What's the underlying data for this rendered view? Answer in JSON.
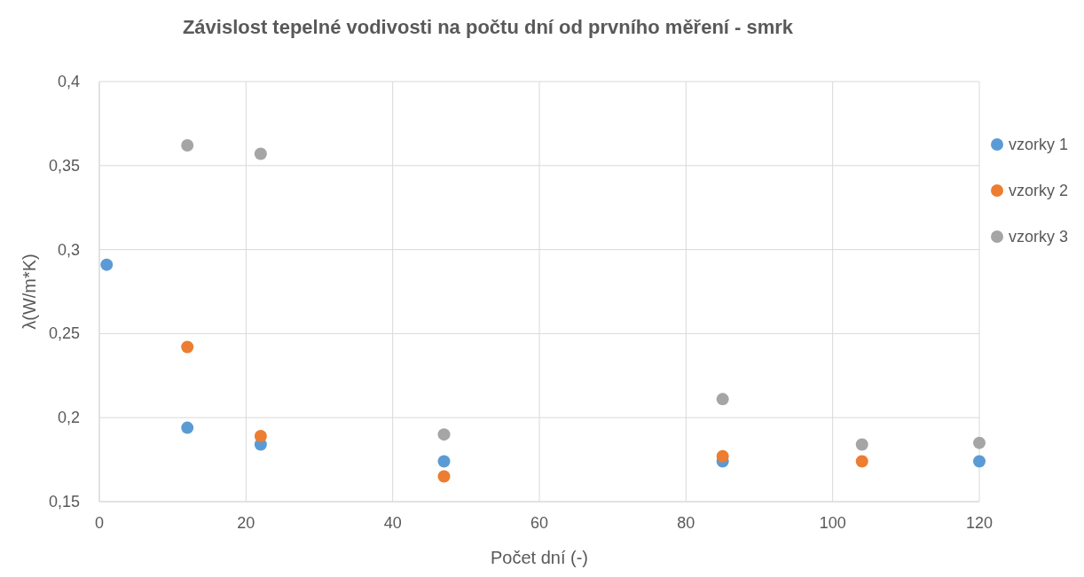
{
  "chart_data": {
    "type": "scatter",
    "title": "Závislost tepelné vodivosti na počtu dní od prvního měření - smrk",
    "xlabel": "Počet dní (-)",
    "ylabel": "λ(W/m*K)",
    "xlim": [
      0,
      120
    ],
    "xticks": [
      0,
      20,
      40,
      60,
      80,
      100,
      120
    ],
    "ylim": [
      0.15,
      0.4
    ],
    "yticks": [
      {
        "value": 0.15,
        "label": "0,15"
      },
      {
        "value": 0.2,
        "label": "0,2"
      },
      {
        "value": 0.25,
        "label": "0,25"
      },
      {
        "value": 0.3,
        "label": "0,3"
      },
      {
        "value": 0.35,
        "label": "0,35"
      },
      {
        "value": 0.4,
        "label": "0,4"
      }
    ],
    "grid": true,
    "legend": "right",
    "marker": "circle",
    "series": [
      {
        "name": "vzorky 1",
        "color": "#5b9bd5",
        "x": [
          1,
          12,
          22,
          47,
          85,
          120
        ],
        "values": [
          0.291,
          0.194,
          0.184,
          0.174,
          0.174,
          0.174
        ]
      },
      {
        "name": "vzorky 2",
        "color": "#ed7d31",
        "x": [
          12,
          22,
          47,
          85,
          104
        ],
        "values": [
          0.242,
          0.189,
          0.165,
          0.177,
          0.174
        ]
      },
      {
        "name": "vzorky 3",
        "color": "#a5a5a5",
        "x": [
          12,
          22,
          47,
          85,
          104,
          120
        ],
        "values": [
          0.362,
          0.357,
          0.19,
          0.211,
          0.184,
          0.185
        ]
      }
    ]
  }
}
